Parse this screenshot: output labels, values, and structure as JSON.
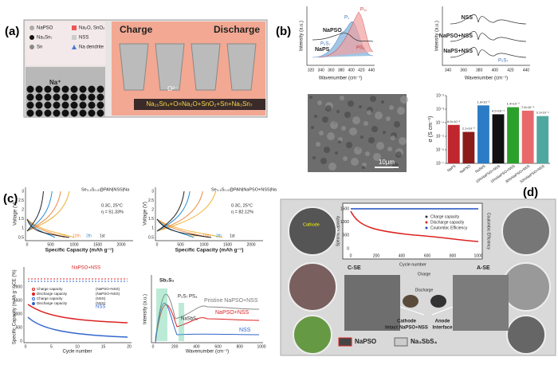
{
  "panel_a": {
    "label": "(a)",
    "legend": [
      "NaPSO",
      "Na₂O, SnO₂",
      "Na₃Sn₇",
      "NSS",
      "Sn",
      "Na dendrite"
    ],
    "charge": "Charge",
    "discharge": "Discharge",
    "ion": "Na⁺",
    "oxygen": "O²⁻",
    "equation": "Na₁₅Sn₄+O=Na₂O+SnO₂+Sn+Na₃Sn₇"
  },
  "panel_b": {
    "label": "(b)",
    "raman_left": {
      "ylabel": "Intensity (a.u.)",
      "xlabel": "Wavenumber (cm⁻¹)",
      "xticks": [
        320,
        340,
        360,
        380,
        400,
        420,
        440
      ],
      "curves": [
        "NaPSO",
        "NaPS"
      ],
      "peaks": [
        "P₂S₇",
        "P₁",
        "P₁₁",
        "PS₄"
      ]
    },
    "raman_right": {
      "ylabel": "Intensity (a.u.)",
      "xlabel": "Wavenumber (cm⁻¹)",
      "xticks": [
        340,
        360,
        380,
        400,
        420,
        440
      ],
      "curves": [
        "NSS",
        "NaPSO+NSS",
        "NaPS+NSS"
      ],
      "peaks": [
        "P₂S₇"
      ]
    },
    "scale_bar": "10μm",
    "chart_data": {
      "type": "bar",
      "ylabel": "σ (S cm⁻¹)",
      "log_scale": true,
      "categories": [
        "NaPS",
        "NaPSO",
        "NaSbS",
        "10%NaPSO+NSS",
        "15%NaPSO+NSS",
        "30%NaPSO+NSS",
        "50%NaPSO+NSS"
      ],
      "values": [
        6.9e-05,
        2.1e-05,
        0.0019,
        0.00042,
        0.0014,
        0.00078,
        0.00031
      ],
      "value_labels": [
        "6.9×10⁻⁵",
        "2.1×10⁻⁵",
        "1.9×10⁻³",
        "4.2×10⁻⁴",
        "1.4×10⁻³",
        "7.8×10⁻⁴",
        "3.1×10⁻⁴"
      ],
      "colors": [
        "#c0262d",
        "#8b1a1a",
        "#2b7cc4",
        "#111111",
        "#2ca02c",
        "#e8696b",
        "#4fa8a0"
      ],
      "ylim": [
        1e-07,
        0.01
      ],
      "yticks": [
        {
          "value": 1e-07,
          "label": "10⁻⁷"
        },
        {
          "value": 1e-06,
          "label": "10⁻⁶"
        },
        {
          "value": 1e-05,
          "label": "10⁻⁵"
        },
        {
          "value": 0.0001,
          "label": "10⁻⁴"
        },
        {
          "value": 0.001,
          "label": "10⁻³"
        },
        {
          "value": 0.01,
          "label": "10⁻²"
        }
      ]
    }
  },
  "panel_c": {
    "label": "(c)",
    "gcd_left": {
      "cell": "Se₀.₅S₀.₅@PAN|NSS|Na",
      "condition": "0.3C, 25°C",
      "efficiency": "η = 51.33%",
      "cycles": [
        "20th",
        "10th",
        "2th",
        "1st"
      ],
      "ylabel": "Voltage (V)",
      "xlabel": "Specific Capacity (mAh g⁻¹)",
      "xticks": [
        0,
        500,
        1000,
        1500,
        2000
      ],
      "yticks": [
        0.5,
        1.0,
        1.5,
        2.0,
        2.5,
        3.0
      ]
    },
    "gcd_right": {
      "cell": "Se₀.₅S₀.₅@PAN|NaPSO+NSS|Na",
      "condition": "0.3C, 25°C",
      "efficiency": "η = 82.12%",
      "cycles": [
        "20th",
        "10th",
        "2th",
        "1st"
      ],
      "ylabel": "Voltage (V)",
      "xlabel": "Specific Capacity (mAh g⁻¹)",
      "xticks": [
        0,
        500,
        1000,
        1500,
        2000
      ],
      "yticks": [
        0.5,
        1.0,
        1.5,
        2.0,
        2.5,
        3.0
      ]
    },
    "cycling": {
      "ce_label": "CE (%)",
      "ylabel": "Specific Capacity (mAh g⁻¹)",
      "xlabel": "Cycle number",
      "tag": "NaPSO+NSS",
      "legend": [
        "Charge capacity",
        "Discharge capacity",
        "Charge capacity",
        "Discharge capacity"
      ],
      "legend_tags": [
        "(NaPSO+NSS)",
        "(NaPSO+NSS)",
        "(NSS)",
        "(NSS)"
      ],
      "series_tag": "NSS",
      "xticks": [
        0,
        5,
        10,
        15,
        20
      ],
      "yticks": [
        0,
        500,
        1000,
        1500,
        2000
      ],
      "ce_ticks": [
        0,
        50,
        100
      ]
    },
    "raman": {
      "peaks": [
        "Sb₂S₃",
        "P₂S₇",
        "PS₄",
        "NaSbS₂"
      ],
      "curves": [
        "Pristine NaPSO+NSS",
        "NaPSO+NSS",
        "NSS"
      ],
      "xlabel": "Wavenumber (cm⁻¹)",
      "ylabel": "Intensity (a.u.)",
      "xticks": [
        0,
        200,
        400,
        600,
        800,
        1000
      ]
    }
  },
  "panel_d": {
    "label": "(d)",
    "inset": {
      "ylabel": "Specific Capacity",
      "y2label": "Coulombic Efficiency",
      "xlabel": "Cycle number",
      "legend": [
        "Charge capacity",
        "Discharge capacity",
        "Coulombic Efficiency"
      ],
      "xticks": [
        0,
        200,
        400,
        600,
        800,
        1000
      ],
      "yticks": [
        0,
        500,
        1000,
        1500
      ]
    },
    "labels": [
      "Cathode",
      "C-SE",
      "Cathode",
      "Intact NaPSO+NSS",
      "Anode",
      "Interface",
      "A-SE",
      "Charge",
      "Discharge"
    ],
    "key": [
      "NaPSO",
      "Na₃SbS₄"
    ]
  }
}
